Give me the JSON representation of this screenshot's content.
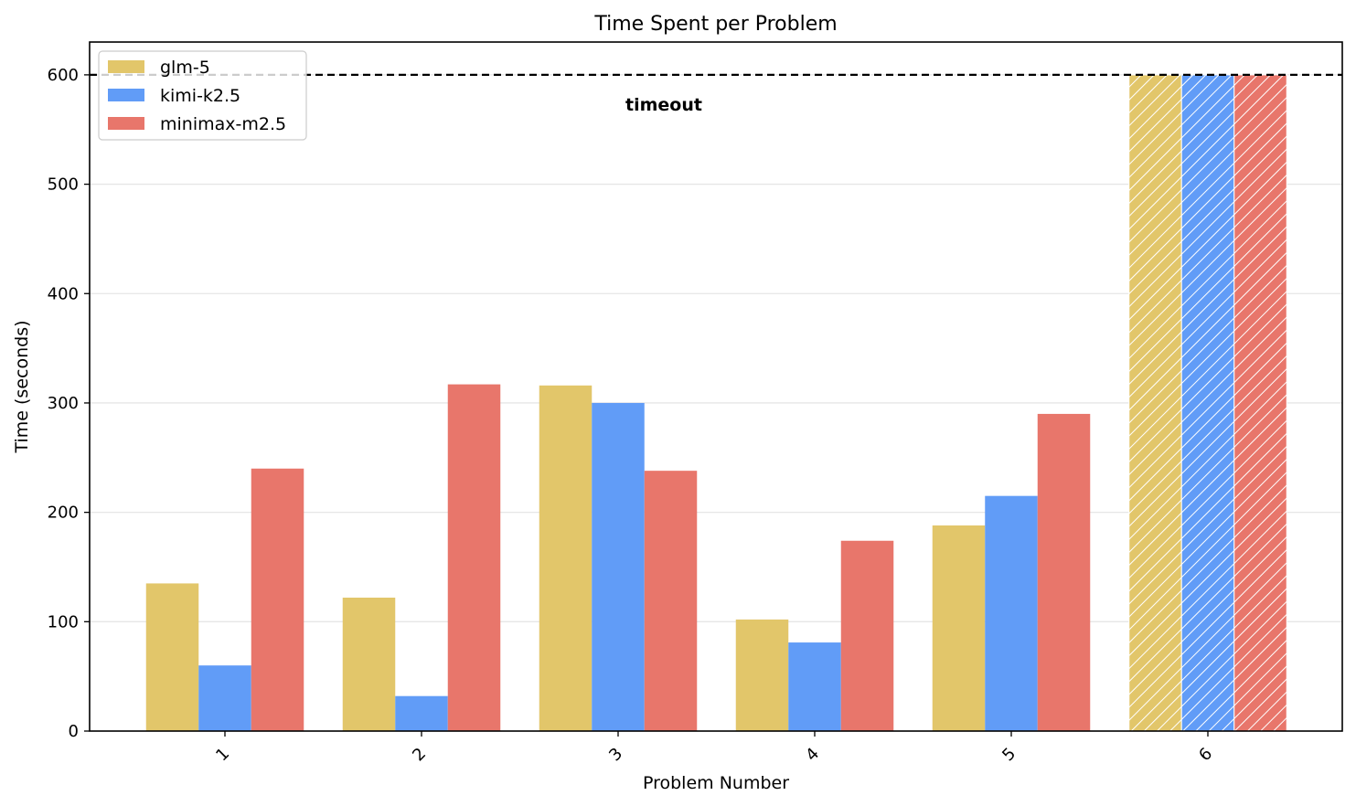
{
  "chart_data": {
    "type": "bar",
    "title": "Time Spent per Problem",
    "xlabel": "Problem Number",
    "ylabel": "Time (seconds)",
    "categories": [
      "1",
      "2",
      "3",
      "4",
      "5",
      "6"
    ],
    "series": [
      {
        "name": "glm-5",
        "color": "#E2C66A",
        "values": [
          135,
          122,
          316,
          102,
          188,
          600
        ]
      },
      {
        "name": "kimi-k2.5",
        "color": "#619CF7",
        "values": [
          60,
          32,
          300,
          81,
          215,
          600
        ]
      },
      {
        "name": "minimax-m2.5",
        "color": "#E8766B",
        "values": [
          240,
          317,
          238,
          174,
          290,
          600
        ]
      }
    ],
    "ylim": [
      0,
      630
    ],
    "yticks": [
      0,
      100,
      200,
      300,
      400,
      500,
      600
    ],
    "grid": "horizontal",
    "legend_position": "top-left",
    "hatched_categories": [
      "6"
    ],
    "reference_line": {
      "value": 600,
      "style": "dashed",
      "label": "timeout"
    }
  }
}
